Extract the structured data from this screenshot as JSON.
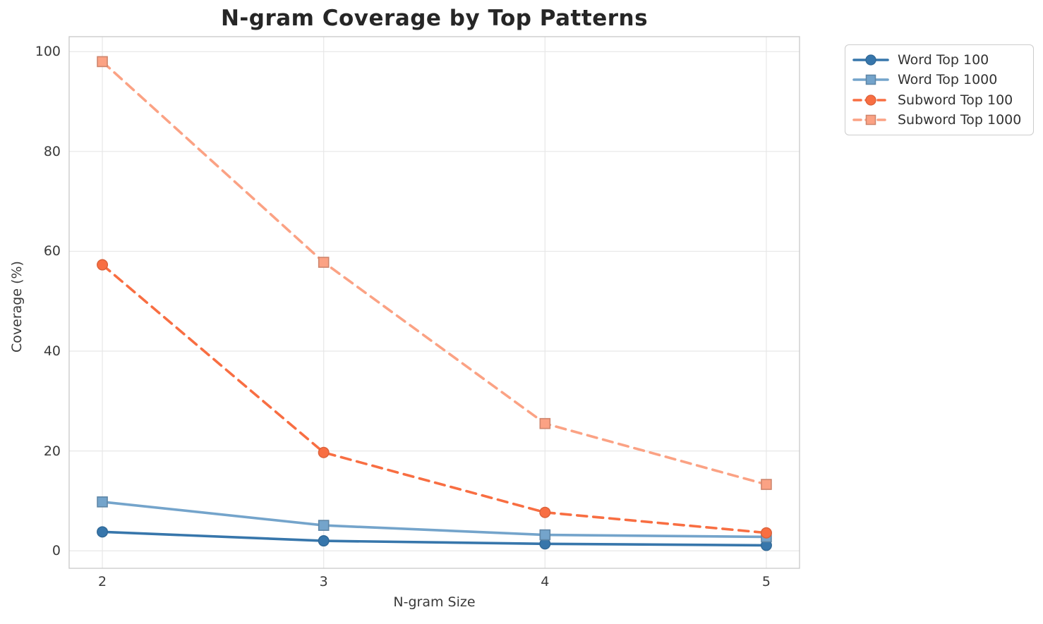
{
  "chart_data": {
    "type": "line",
    "title": "N-gram Coverage by Top Patterns",
    "xlabel": "N-gram Size",
    "ylabel": "Coverage (%)",
    "x": [
      2,
      3,
      4,
      5
    ],
    "x_tick_labels": [
      "2",
      "3",
      "4",
      "5"
    ],
    "y_ticks": [
      0,
      20,
      40,
      60,
      80,
      100
    ],
    "xlim": [
      1.85,
      5.15
    ],
    "ylim": [
      -3.5,
      103
    ],
    "grid": true,
    "legend_position": "outside-upper-right",
    "colors": {
      "grid": "#e7e7e7",
      "spine": "#cccccc",
      "tick_text": "#3a3a3a",
      "title_text": "#262626",
      "legend_border": "#cccccc"
    },
    "series": [
      {
        "name": "Word Top 100",
        "color": "#3776ab",
        "marker": "circle",
        "line_style": "solid",
        "values": [
          3.8,
          2.0,
          1.4,
          1.1
        ]
      },
      {
        "name": "Word Top 1000",
        "color": "#74a4cb",
        "marker": "square",
        "line_style": "solid",
        "values": [
          9.8,
          5.1,
          3.2,
          2.8
        ]
      },
      {
        "name": "Subword Top 100",
        "color": "#f86e42",
        "marker": "circle",
        "line_style": "dashed",
        "values": [
          57.3,
          19.7,
          7.7,
          3.6
        ]
      },
      {
        "name": "Subword Top 1000",
        "color": "#fba284",
        "marker": "square",
        "line_style": "dashed",
        "values": [
          98.0,
          57.8,
          25.5,
          13.3
        ]
      }
    ]
  }
}
